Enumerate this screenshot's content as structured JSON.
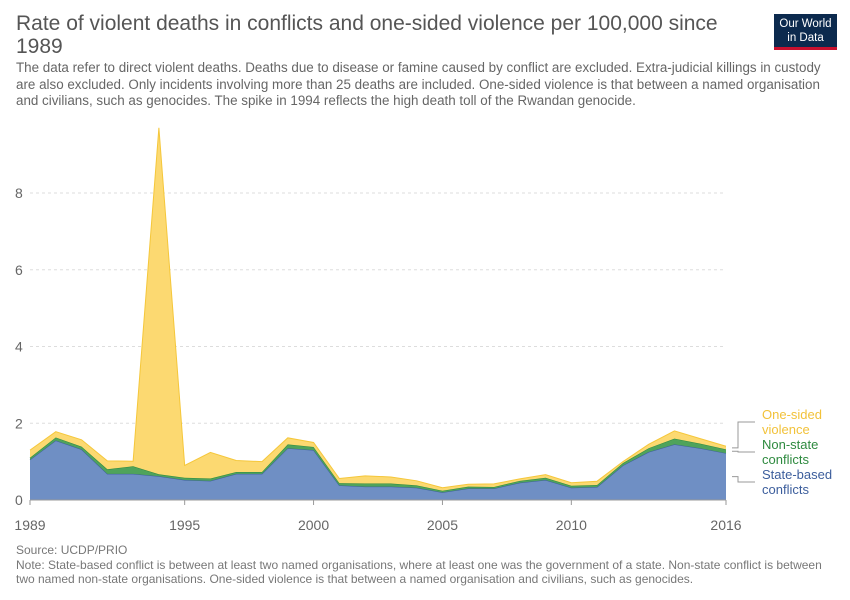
{
  "header": {
    "title": "Rate of violent deaths in conflicts and one-sided violence per 100,000 since 1989",
    "subtitle": "The data refer to direct violent deaths. Deaths due to disease or famine caused by conflict are excluded. Extra-judicial killings in custody are also excluded. Only incidents involving more than 25 deaths are included. One-sided violence is that between a named organisation and civilians, such as genocides. The spike in 1994 reflects the high death toll of the Rwandan genocide."
  },
  "logo": {
    "line1": "Our World",
    "line2": "in Data"
  },
  "footer": {
    "source": "Source: UCDP/PRIO",
    "note": "Note: State-based conflict is between at least two named organisations, where at least one was the government of a state. Non-state conflict is between two named non-state organisations. One-sided violence is that between a named organisation and civilians, such as genocides."
  },
  "chart_data": {
    "type": "area",
    "stacked": true,
    "x": [
      1989,
      1990,
      1991,
      1992,
      1993,
      1994,
      1995,
      1996,
      1997,
      1998,
      1999,
      2000,
      2001,
      2002,
      2003,
      2004,
      2005,
      2006,
      2007,
      2008,
      2009,
      2010,
      2011,
      2012,
      2013,
      2014,
      2015,
      2016
    ],
    "series": [
      {
        "name": "State-based conflicts",
        "color": "#6f8fc4",
        "line": "#3c5e9c",
        "values": [
          1.05,
          1.55,
          1.32,
          0.68,
          0.68,
          0.62,
          0.52,
          0.5,
          0.68,
          0.68,
          1.35,
          1.3,
          0.38,
          0.35,
          0.35,
          0.32,
          0.2,
          0.3,
          0.3,
          0.45,
          0.52,
          0.32,
          0.34,
          0.9,
          1.25,
          1.45,
          1.35,
          1.22
        ]
      },
      {
        "name": "Non-state conflicts",
        "color": "#4fa35b",
        "line": "#2e8a3f",
        "values": [
          0.05,
          0.08,
          0.07,
          0.12,
          0.2,
          0.05,
          0.06,
          0.06,
          0.05,
          0.05,
          0.1,
          0.08,
          0.06,
          0.08,
          0.08,
          0.06,
          0.04,
          0.05,
          0.04,
          0.05,
          0.06,
          0.05,
          0.05,
          0.06,
          0.1,
          0.15,
          0.12,
          0.1
        ]
      },
      {
        "name": "One-sided violence",
        "color": "#fcd971",
        "line": "#f5c73a",
        "values": [
          0.2,
          0.15,
          0.18,
          0.22,
          0.13,
          9.03,
          0.32,
          0.68,
          0.3,
          0.27,
          0.17,
          0.12,
          0.12,
          0.2,
          0.17,
          0.12,
          0.08,
          0.06,
          0.08,
          0.05,
          0.08,
          0.08,
          0.1,
          0.04,
          0.1,
          0.2,
          0.13,
          0.08
        ]
      }
    ],
    "legend": [
      "One-sided violence",
      "Non-state conflicts",
      "State-based conflicts"
    ],
    "legend_lines": [
      [
        "One-sided",
        "violence"
      ],
      [
        "Non-state",
        "conflicts"
      ],
      [
        "State-based",
        "conflicts"
      ]
    ],
    "xticks": [
      "1989",
      "1995",
      "2000",
      "2005",
      "2010",
      "2016"
    ],
    "xtick_values": [
      1989,
      1995,
      2000,
      2005,
      2010,
      2016
    ],
    "yticks": [
      "0",
      "2",
      "4",
      "6",
      "8"
    ],
    "ytick_values": [
      0,
      2,
      4,
      6,
      8
    ],
    "xlim": [
      1989,
      2016
    ],
    "ylim": [
      0,
      9.8
    ],
    "grid": true,
    "legend_position": "right"
  }
}
